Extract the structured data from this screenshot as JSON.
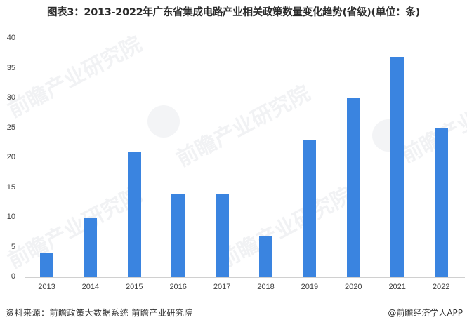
{
  "title": "图表3：2013-2022年广东省集成电路产业相关政策数量变化趋势(省级)(单位：条)",
  "footer": {
    "source": "资料来源：前瞻政策大数据系统 前瞻产业研究院",
    "credit": "@前瞻经济学人APP"
  },
  "watermark": "前瞻产业研究院",
  "colors": {
    "bar": "#3A84E0",
    "axis": "#D0D0D0"
  },
  "chart_data": {
    "type": "bar",
    "title": "图表3：2013-2022年广东省集成电路产业相关政策数量变化趋势(省级)(单位：条)",
    "xlabel": "",
    "ylabel": "",
    "categories": [
      "2013",
      "2014",
      "2015",
      "2016",
      "2017",
      "2018",
      "2019",
      "2020",
      "2021",
      "2022"
    ],
    "values": [
      4,
      10,
      21,
      14,
      14,
      7,
      23,
      30,
      37,
      25
    ],
    "ylim": [
      0,
      40
    ],
    "yticks": [
      "0",
      "5",
      "10",
      "15",
      "20",
      "25",
      "30",
      "35",
      "40"
    ],
    "grid": false,
    "legend": null,
    "unit": "条"
  }
}
